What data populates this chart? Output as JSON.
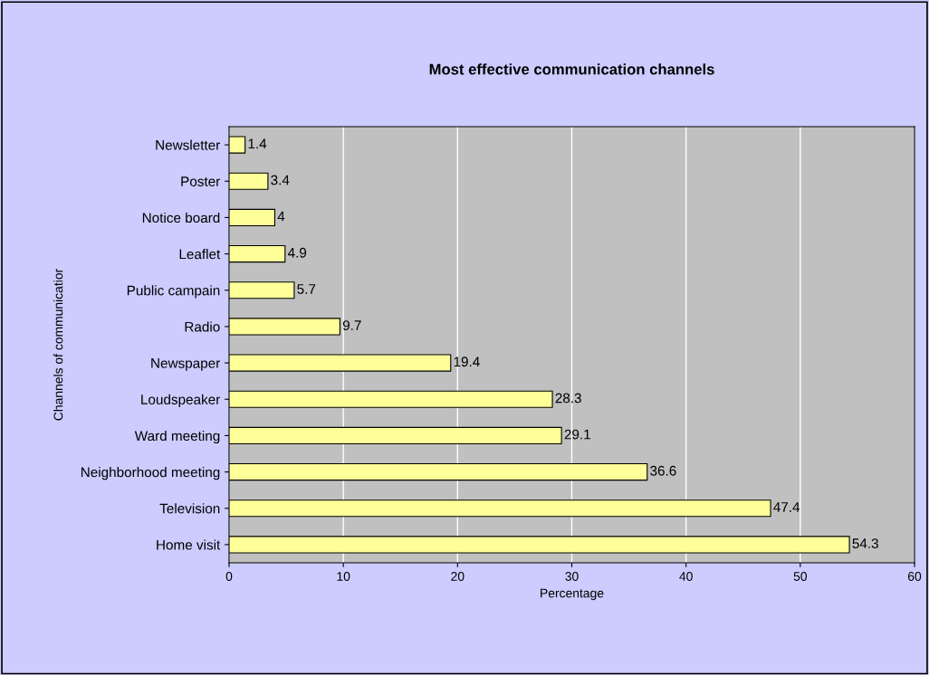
{
  "chart_data": {
    "type": "bar",
    "orientation": "horizontal",
    "title": "Most effective communication channels",
    "xlabel": "Percentage",
    "ylabel": "Channels of communicatior",
    "categories": [
      "Newsletter",
      "Poster",
      "Notice board",
      "Leaflet",
      "Public campain",
      "Radio",
      "Newspaper",
      "Loudspeaker",
      "Ward meeting",
      "Neighborhood meeting",
      "Television",
      "Home visit"
    ],
    "values": [
      1.4,
      3.4,
      4,
      4.9,
      5.7,
      9.7,
      19.4,
      28.3,
      29.1,
      36.6,
      47.4,
      54.3
    ],
    "color": "#ffff99",
    "xlim": [
      0,
      60
    ],
    "xticks": [
      0,
      10,
      20,
      30,
      40,
      50,
      60
    ],
    "grid": "x",
    "data_labels": true,
    "legend": false
  }
}
